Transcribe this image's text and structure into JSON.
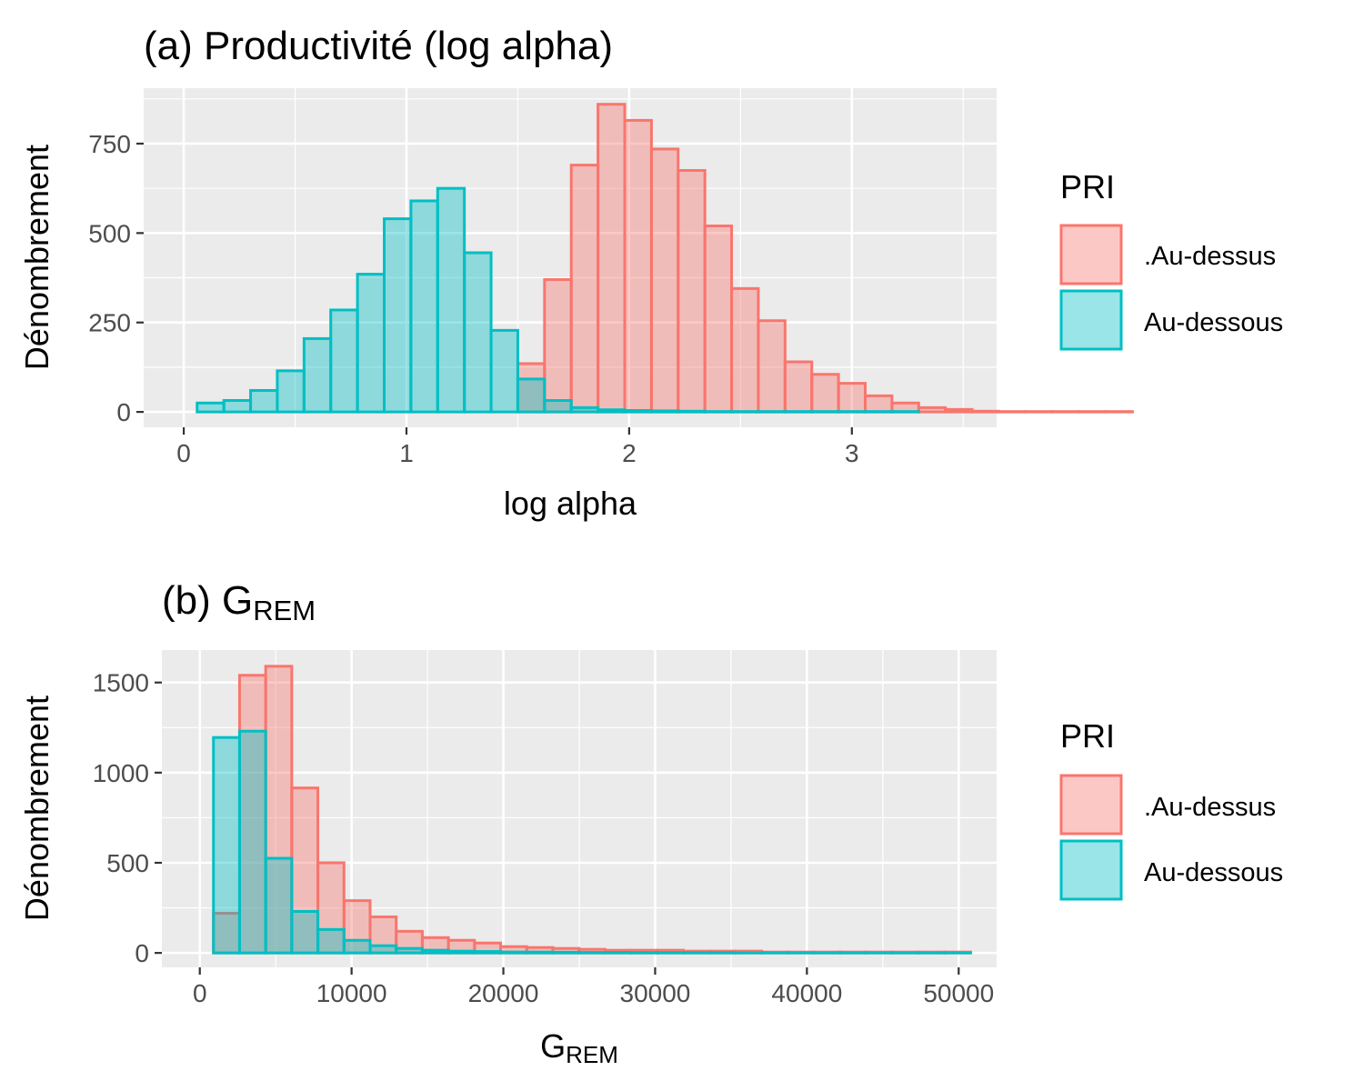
{
  "colors": {
    "above": "#F8766D",
    "below": "#00BFC4",
    "panel_bg": "#EBEBEB",
    "grid": "#FFFFFF"
  },
  "chart_data": [
    {
      "type": "bar",
      "title": "(a) Productivité (log alpha)",
      "xlabel": "log alpha",
      "ylabel": "Dénombrement",
      "xlim": [
        -0.18,
        3.65
      ],
      "ylim": [
        -43,
        905
      ],
      "xticks": [
        0,
        1,
        2,
        3
      ],
      "yticks": [
        0,
        250,
        500,
        750
      ],
      "bin_start": 0.06,
      "bin_width": 0.12,
      "legend": {
        "title": "PRI",
        "placement": "right",
        "entries": [
          ".Au-dessus",
          "Au-dessous"
        ]
      },
      "series": [
        {
          "name": ".Au-dessus",
          "values": [
            0,
            0,
            0,
            0,
            0,
            0,
            0,
            0,
            0,
            0,
            0,
            0,
            135,
            370,
            690,
            860,
            815,
            735,
            675,
            520,
            345,
            255,
            140,
            105,
            80,
            45,
            25,
            12,
            7,
            2,
            1,
            1,
            1,
            1,
            1
          ]
        },
        {
          "name": "Au-dessous",
          "values": [
            25,
            32,
            60,
            115,
            205,
            285,
            385,
            540,
            590,
            625,
            445,
            228,
            92,
            32,
            12,
            6,
            4,
            3,
            2,
            1,
            1,
            1,
            1,
            1,
            1,
            1,
            1,
            0,
            0,
            0,
            0,
            0,
            0,
            0,
            0
          ]
        }
      ]
    },
    {
      "type": "bar",
      "title": "(b) G",
      "title_sub": "REM",
      "xlabel": "G",
      "xlabel_sub": "REM",
      "ylabel": "Dénombrement",
      "xlim": [
        -2500,
        52500
      ],
      "ylim": [
        -80,
        1680
      ],
      "xticks": [
        0,
        10000,
        20000,
        30000,
        40000,
        50000
      ],
      "yticks": [
        0,
        500,
        1000,
        1500
      ],
      "bin_start": 900,
      "bin_width": 1720,
      "legend": {
        "title": "PRI",
        "placement": "right",
        "entries": [
          ".Au-dessus",
          "Au-dessous"
        ]
      },
      "series": [
        {
          "name": ".Au-dessus",
          "values": [
            220,
            1540,
            1590,
            915,
            500,
            290,
            200,
            120,
            85,
            70,
            55,
            35,
            30,
            25,
            20,
            15,
            15,
            15,
            10,
            10,
            10,
            5,
            5,
            5,
            5,
            5,
            5,
            5,
            5
          ]
        },
        {
          "name": "Au-dessous",
          "values": [
            1195,
            1230,
            525,
            230,
            130,
            70,
            40,
            25,
            15,
            10,
            8,
            5,
            5,
            4,
            3,
            3,
            2,
            2,
            2,
            2,
            1,
            1,
            1,
            1,
            1,
            1,
            1,
            1,
            1
          ]
        }
      ]
    }
  ]
}
